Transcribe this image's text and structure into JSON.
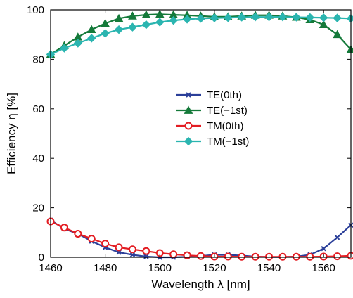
{
  "chart_data": {
    "type": "line",
    "xlabel": "Wavelength λ [nm]",
    "ylabel": "Efficiency η [%]",
    "xlim": [
      1460,
      1570
    ],
    "ylim": [
      0,
      100
    ],
    "xticks": [
      "1460",
      "1480",
      "1500",
      "1520",
      "1540",
      "1560"
    ],
    "yticks": [
      "0",
      "20",
      "40",
      "60",
      "80",
      "100"
    ],
    "grid": false,
    "legend_position": "center",
    "x": [
      1460,
      1465,
      1470,
      1475,
      1480,
      1485,
      1490,
      1495,
      1500,
      1505,
      1510,
      1515,
      1520,
      1525,
      1530,
      1535,
      1540,
      1545,
      1550,
      1555,
      1560,
      1565,
      1570
    ],
    "series": [
      {
        "name": "TE(0th)",
        "color": "#2b3f99",
        "marker": "x",
        "values": [
          15,
          11.5,
          9.5,
          6.5,
          4,
          2,
          1,
          0.3,
          0,
          0,
          0.2,
          0.5,
          1,
          1,
          0.7,
          0.3,
          0.1,
          0.1,
          0.3,
          1,
          3.5,
          8,
          13
        ]
      },
      {
        "name": "TE(−1st)",
        "color": "#157a3a",
        "marker": "triangle",
        "values": [
          82,
          85.5,
          89,
          92,
          94.5,
          96.5,
          97.5,
          98,
          98.2,
          98,
          97.8,
          97.5,
          97.2,
          97.2,
          97.5,
          97.8,
          97.8,
          97.5,
          97,
          96,
          94,
          90,
          84
        ]
      },
      {
        "name": "TM(0th)",
        "color": "#e31d23",
        "marker": "circle",
        "values": [
          14.5,
          12,
          9.5,
          7.5,
          5.5,
          4,
          3.2,
          2.5,
          1.7,
          1.2,
          0.8,
          0.5,
          0.3,
          0.3,
          0.2,
          0.2,
          0.2,
          0.2,
          0.2,
          0.2,
          0.3,
          0.4,
          0.6
        ]
      },
      {
        "name": "TM(−1st)",
        "color": "#2bb5b0",
        "marker": "diamond",
        "values": [
          82,
          84.5,
          86.5,
          88.5,
          90.5,
          92,
          93,
          94,
          95,
          95.7,
          96.2,
          96.5,
          96.7,
          96.8,
          97,
          97.1,
          97.1,
          97.1,
          97,
          96.9,
          96.8,
          96.7,
          96.5
        ]
      }
    ]
  }
}
